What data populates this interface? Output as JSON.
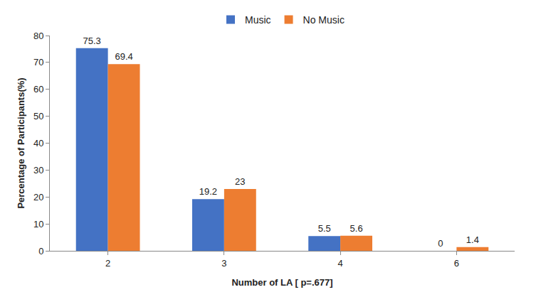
{
  "chart_data": {
    "type": "bar",
    "x_label": "Number of LA [ p=.677]",
    "y_label": "Percentage of Participants(%)",
    "categories": [
      "2",
      "3",
      "4",
      "6"
    ],
    "series": [
      {
        "name": "Music",
        "color": "#4472c4",
        "values": [
          75.3,
          19.2,
          5.5,
          0
        ]
      },
      {
        "name": "No Music",
        "color": "#ed7d31",
        "values": [
          69.4,
          23,
          5.6,
          1.4
        ]
      }
    ],
    "ylim": [
      0,
      80
    ],
    "yticks": [
      0,
      10,
      20,
      30,
      40,
      50,
      60,
      70,
      80
    ],
    "grid": false,
    "legend": "top",
    "data_labels": true
  }
}
